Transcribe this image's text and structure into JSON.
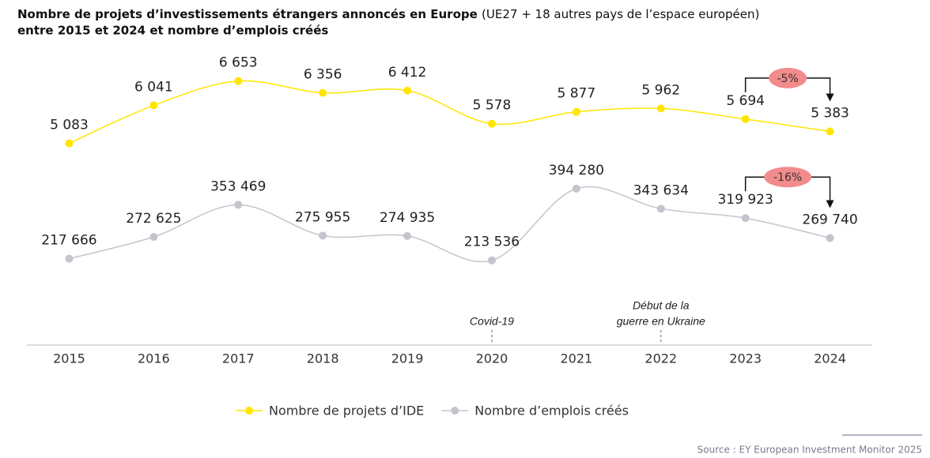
{
  "chart_data": {
    "type": "line",
    "title": "Nombre de projets d’investissements étrangers annoncés en Europe",
    "title_suffix": "(UE27 + 18 autres pays de l’espace européen)",
    "title_line2": "entre 2015 et 2024 et nombre d’emplois créés",
    "categories": [
      "2015",
      "2016",
      "2017",
      "2018",
      "2019",
      "2020",
      "2021",
      "2022",
      "2023",
      "2024"
    ],
    "ylim": [
      0,
      7900
    ],
    "y2lim": [
      0,
      790000
    ],
    "series": [
      {
        "name": "Nombre de projets d’IDE",
        "color": "#ffe600",
        "values": [
          5083,
          6041,
          6653,
          6356,
          6412,
          5578,
          5877,
          5962,
          5694,
          5383
        ],
        "value_labels": [
          "5 083",
          "6 041",
          "6 653",
          "6 356",
          "6 412",
          "5 578",
          "5 877",
          "5 962",
          "5 694",
          "5 383"
        ]
      },
      {
        "name": "Nombre d’emplois créés",
        "color": "#c4c4cd",
        "axis": "y2",
        "values": [
          217666,
          272625,
          353469,
          275955,
          274935,
          213536,
          394280,
          343634,
          319923,
          269740
        ],
        "value_labels": [
          "217 666",
          "272 625",
          "353 469",
          "275 955",
          "274 935",
          "213 536",
          "394 280",
          "343 634",
          "319 923",
          "269 740"
        ]
      }
    ],
    "changes": [
      "-5%",
      "-16%"
    ],
    "events": [
      {
        "category": "2020",
        "lines": [
          "Covid-19"
        ]
      },
      {
        "category": "2022",
        "lines": [
          "Début de la",
          "guerre en Ukraine"
        ]
      }
    ],
    "source": "Source : EY European Investment Monitor 2025"
  }
}
